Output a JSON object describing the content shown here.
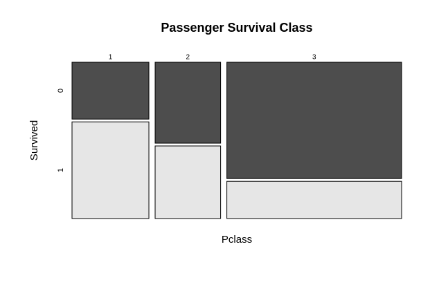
{
  "chart_data": {
    "type": "mosaic",
    "title": "Passenger Survival Class",
    "x_label": "Pclass",
    "y_label": "Survived",
    "categories": [
      "1",
      "2",
      "3"
    ],
    "series": [
      {
        "name": "0",
        "color": "#4d4d4d",
        "values": [
          80,
          97,
          372
        ]
      },
      {
        "name": "1",
        "color": "#e6e6e6",
        "values": [
          136,
          87,
          119
        ]
      }
    ]
  }
}
